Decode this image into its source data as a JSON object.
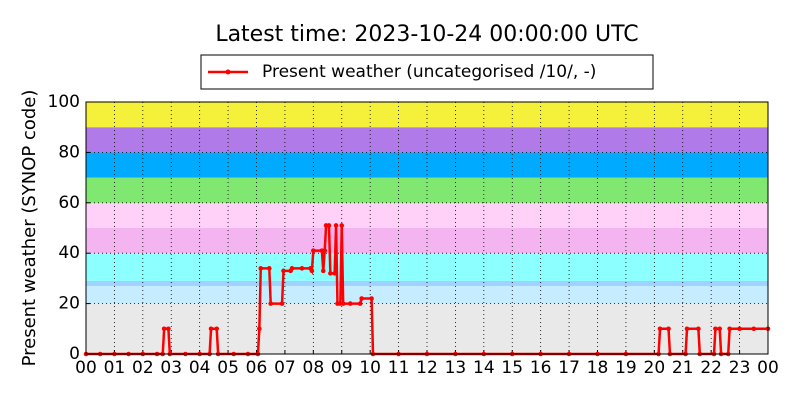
{
  "chart_data": {
    "type": "line",
    "title": "Latest time: 2023-10-24 00:00:00 UTC",
    "y_label": "Present weather (SYNOP code)",
    "xlim": [
      0,
      24
    ],
    "ylim": [
      0,
      100
    ],
    "xticks": [
      {
        "value": 0,
        "label": "00"
      },
      {
        "value": 1,
        "label": "01"
      },
      {
        "value": 2,
        "label": "02"
      },
      {
        "value": 3,
        "label": "03"
      },
      {
        "value": 4,
        "label": "04"
      },
      {
        "value": 5,
        "label": "05"
      },
      {
        "value": 6,
        "label": "06"
      },
      {
        "value": 7,
        "label": "07"
      },
      {
        "value": 8,
        "label": "08"
      },
      {
        "value": 9,
        "label": "09"
      },
      {
        "value": 10,
        "label": "10"
      },
      {
        "value": 11,
        "label": "11"
      },
      {
        "value": 12,
        "label": "12"
      },
      {
        "value": 13,
        "label": "13"
      },
      {
        "value": 14,
        "label": "14"
      },
      {
        "value": 15,
        "label": "15"
      },
      {
        "value": 16,
        "label": "16"
      },
      {
        "value": 17,
        "label": "17"
      },
      {
        "value": 18,
        "label": "18"
      },
      {
        "value": 19,
        "label": "19"
      },
      {
        "value": 20,
        "label": "20"
      },
      {
        "value": 21,
        "label": "21"
      },
      {
        "value": 22,
        "label": "22"
      },
      {
        "value": 23,
        "label": "23"
      },
      {
        "value": 24,
        "label": "00"
      }
    ],
    "yticks": [
      0,
      20,
      40,
      60,
      80,
      100
    ],
    "grid": true,
    "bands": [
      {
        "from": 0,
        "to": 20,
        "color": "#e9e9e9"
      },
      {
        "from": 20,
        "to": 27,
        "color": "#c6ecff"
      },
      {
        "from": 27,
        "to": 29,
        "color": "#9fd2ff"
      },
      {
        "from": 29,
        "to": 40,
        "color": "#8cffff"
      },
      {
        "from": 40,
        "to": 50,
        "color": "#f4b4f0"
      },
      {
        "from": 50,
        "to": 60,
        "color": "#ffd0f8"
      },
      {
        "from": 60,
        "to": 70,
        "color": "#80e870"
      },
      {
        "from": 70,
        "to": 80,
        "color": "#00aaff"
      },
      {
        "from": 80,
        "to": 90,
        "color": "#b07ae8"
      },
      {
        "from": 90,
        "to": 100,
        "color": "#f5f03a"
      }
    ],
    "series": [
      {
        "name": "Present weather (uncategorised /10/, -)",
        "color": "#ff0000",
        "x": [
          0,
          0.5,
          1,
          1.5,
          2,
          2.5,
          2.7,
          2.75,
          2.9,
          2.95,
          3.5,
          4,
          4.35,
          4.4,
          4.6,
          4.65,
          5.2,
          5.7,
          6.05,
          6.1,
          6.15,
          6.45,
          6.5,
          6.9,
          6.95,
          7.2,
          7.25,
          7.6,
          7.9,
          7.95,
          8.0,
          8.3,
          8.35,
          8.4,
          8.45,
          8.55,
          8.6,
          8.75,
          8.8,
          8.85,
          8.95,
          9.0,
          9.05,
          9.3,
          9.65,
          9.7,
          10.05,
          10.1,
          11,
          12,
          13,
          14,
          15,
          16,
          17,
          18,
          19,
          20.15,
          20.2,
          20.5,
          20.55,
          21.1,
          21.15,
          21.55,
          21.6,
          22.1,
          22.15,
          22.3,
          22.35,
          22.6,
          22.65,
          23,
          23.5,
          24
        ],
        "values": [
          0,
          0,
          0,
          0,
          0,
          0,
          0,
          10,
          10,
          0,
          0,
          0,
          0,
          10,
          10,
          0,
          0,
          0,
          0,
          10,
          34,
          34,
          20,
          20,
          33,
          33,
          34,
          34,
          34,
          33,
          41,
          41,
          33,
          41,
          51,
          51,
          32,
          32,
          51,
          20,
          20,
          51,
          20,
          20,
          20,
          22,
          22,
          0,
          0,
          0,
          0,
          0,
          0,
          0,
          0,
          0,
          0,
          0,
          10,
          10,
          0,
          0,
          10,
          10,
          0,
          0,
          10,
          10,
          0,
          0,
          10,
          10,
          10,
          10
        ]
      }
    ]
  }
}
